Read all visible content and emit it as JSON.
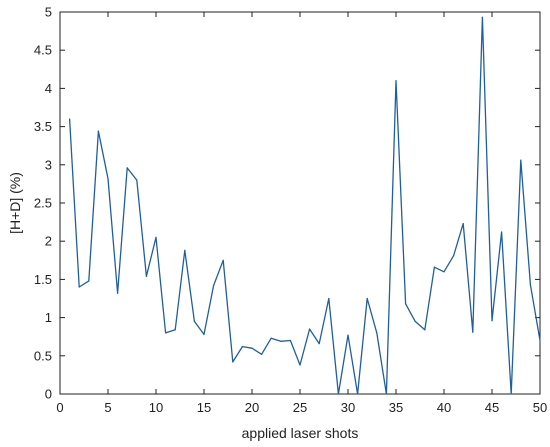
{
  "chart_data": {
    "type": "line",
    "title": "",
    "xlabel": "applied laser shots",
    "ylabel": "[H+D] (%)",
    "xlim": [
      0,
      50
    ],
    "ylim": [
      0,
      5
    ],
    "xticks": [
      "0",
      "5",
      "10",
      "15",
      "20",
      "25",
      "30",
      "35",
      "40",
      "45",
      "50"
    ],
    "yticks": [
      "0",
      "0.5",
      "1",
      "1.5",
      "2",
      "2.5",
      "3",
      "3.5",
      "4",
      "4.5",
      "5"
    ],
    "grid": false,
    "legend": "none",
    "line_color": "#1f5f9e",
    "series": [
      {
        "x": [
          1,
          2,
          3,
          4,
          5,
          6,
          7,
          8,
          9,
          10,
          11,
          12,
          13,
          14,
          15,
          16,
          17,
          18,
          19,
          20,
          21,
          22,
          23,
          24,
          25,
          26,
          27,
          28,
          29,
          30,
          31,
          32,
          33,
          34,
          35,
          36,
          37,
          38,
          39,
          40,
          41,
          42,
          43,
          44,
          45,
          46,
          47,
          48,
          49,
          50
        ],
        "values": [
          3.6,
          1.4,
          1.48,
          3.44,
          2.82,
          1.32,
          2.96,
          2.8,
          1.54,
          2.05,
          0.8,
          0.84,
          1.88,
          0.95,
          0.78,
          1.42,
          1.75,
          0.42,
          0.62,
          0.6,
          0.52,
          0.73,
          0.69,
          0.7,
          0.38,
          0.85,
          0.66,
          1.25,
          0.0,
          0.77,
          0.0,
          1.25,
          0.8,
          0.0,
          4.1,
          1.18,
          0.95,
          0.84,
          1.66,
          1.6,
          1.81,
          2.23,
          0.81,
          4.93,
          0.96,
          2.12,
          0.0,
          3.06,
          1.43,
          0.7
        ]
      }
    ]
  }
}
